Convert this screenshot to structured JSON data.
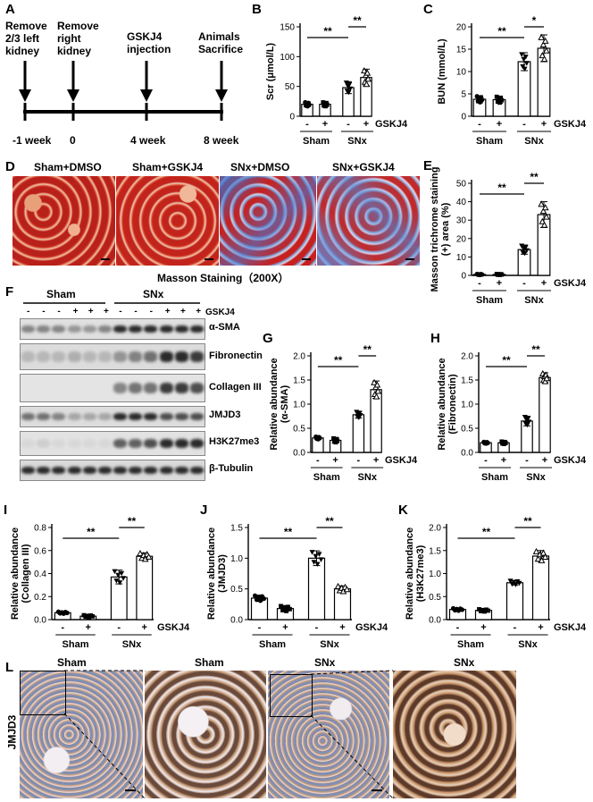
{
  "panels": {
    "A": {
      "label": "A",
      "events": [
        {
          "text": [
            "Remove",
            "2/3 left",
            "kidney"
          ],
          "time": "-1 week"
        },
        {
          "text": [
            "Remove",
            "right",
            "kidney"
          ],
          "time": "0"
        },
        {
          "text": [
            "GSKJ4",
            "injection"
          ],
          "time": "4 week"
        },
        {
          "text": [
            "Animals",
            "Sacrifice"
          ],
          "time": "8 week"
        }
      ]
    },
    "D": {
      "label": "D",
      "titles": [
        "Sham+DMSO",
        "Sham+GSKJ4",
        "SNx+DMSO",
        "SNx+GSKJ4"
      ],
      "caption": "Masson Staining（200X）"
    },
    "F": {
      "label": "F",
      "groups": [
        "Sham",
        "SNx"
      ],
      "lane_signs": [
        "-",
        "-",
        "-",
        "+",
        "+",
        "+",
        "-",
        "-",
        "-",
        "+",
        "+",
        "+"
      ],
      "treatment": "GSKJ4",
      "proteins": [
        "α-SMA",
        "Fibronectin",
        "Collagen III",
        "JMJD3",
        "H3K27me3",
        "β-Tubulin"
      ]
    },
    "L": {
      "label": "L",
      "row_label": "JMJD3",
      "titles": [
        "Sham",
        "Sham",
        "SNx",
        "SNx"
      ]
    }
  },
  "common": {
    "treatment": "GSKJ4",
    "groups": [
      "Sham",
      "SNx"
    ],
    "signs": [
      "-",
      "+",
      "-",
      "+"
    ],
    "sig": "**",
    "sig_single": "*"
  },
  "chart_data": [
    {
      "id": "B",
      "type": "bar",
      "label": "B",
      "ylabel": "Scr (μmol/L)",
      "ylim": [
        0,
        150
      ],
      "yticks": [
        0,
        50,
        100,
        150
      ],
      "categories": [
        "Sham -",
        "Sham +",
        "SNx -",
        "SNx +"
      ],
      "values": [
        20,
        20,
        48,
        65
      ],
      "errors": [
        4,
        4,
        10,
        14
      ],
      "sig": [
        {
          "from": 0,
          "to": 2,
          "text": "**"
        },
        {
          "from": 2,
          "to": 3,
          "text": "**"
        }
      ]
    },
    {
      "id": "C",
      "type": "bar",
      "label": "C",
      "ylabel": "BUN (mmol/L)",
      "ylim": [
        0,
        20
      ],
      "yticks": [
        0,
        5,
        10,
        15,
        20
      ],
      "categories": [
        "Sham -",
        "Sham +",
        "SNx -",
        "SNx +"
      ],
      "values": [
        3.8,
        3.7,
        12.2,
        15.2
      ],
      "errors": [
        0.8,
        0.8,
        2.0,
        3.0
      ],
      "sig": [
        {
          "from": 0,
          "to": 2,
          "text": "**"
        },
        {
          "from": 2,
          "to": 3,
          "text": "*"
        }
      ]
    },
    {
      "id": "E",
      "type": "bar",
      "label": "E",
      "ylabel": "Masson trichrome staining (+) area (%)",
      "ylim": [
        0,
        50
      ],
      "yticks": [
        0,
        10,
        20,
        30,
        40,
        50
      ],
      "categories": [
        "Sham -",
        "Sham +",
        "SNx -",
        "SNx +"
      ],
      "values": [
        0.5,
        0.5,
        14,
        33
      ],
      "errors": [
        0.3,
        0.3,
        2.5,
        7
      ],
      "sig": [
        {
          "from": 0,
          "to": 2,
          "text": "**"
        },
        {
          "from": 2,
          "to": 3,
          "text": "**"
        }
      ]
    },
    {
      "id": "G",
      "type": "bar",
      "label": "G",
      "ylabel": "Relative abundance (α-SMA)",
      "ylim": [
        0,
        2.0
      ],
      "yticks": [
        0.0,
        0.5,
        1.0,
        1.5,
        2.0
      ],
      "categories": [
        "Sham -",
        "Sham +",
        "SNx -",
        "SNx +"
      ],
      "values": [
        0.3,
        0.25,
        0.78,
        1.3
      ],
      "errors": [
        0.03,
        0.05,
        0.07,
        0.18
      ],
      "sig": [
        {
          "from": 0,
          "to": 2,
          "text": "**"
        },
        {
          "from": 2,
          "to": 3,
          "text": "**"
        }
      ]
    },
    {
      "id": "H",
      "type": "bar",
      "label": "H",
      "ylabel": "Relative abundance (Fibronectin)",
      "ylim": [
        0,
        2.0
      ],
      "yticks": [
        0.0,
        0.5,
        1.0,
        1.5,
        2.0
      ],
      "categories": [
        "Sham -",
        "Sham +",
        "SNx -",
        "SNx +"
      ],
      "values": [
        0.2,
        0.2,
        0.65,
        1.55
      ],
      "errors": [
        0.02,
        0.03,
        0.1,
        0.1
      ],
      "sig": [
        {
          "from": 0,
          "to": 2,
          "text": "**"
        },
        {
          "from": 2,
          "to": 3,
          "text": "**"
        }
      ]
    },
    {
      "id": "I",
      "type": "bar",
      "label": "I",
      "ylabel": "Relative abundance (Collagen III)",
      "ylim": [
        0,
        0.8
      ],
      "yticks": [
        0.0,
        0.2,
        0.4,
        0.6,
        0.8
      ],
      "categories": [
        "Sham -",
        "Sham +",
        "SNx -",
        "SNx +"
      ],
      "values": [
        0.06,
        0.03,
        0.37,
        0.55
      ],
      "errors": [
        0.01,
        0.01,
        0.06,
        0.03
      ],
      "sig": [
        {
          "from": 0,
          "to": 2,
          "text": "**"
        },
        {
          "from": 2,
          "to": 3,
          "text": "**"
        }
      ]
    },
    {
      "id": "J",
      "type": "bar",
      "label": "J",
      "ylabel": "Relative abundance (JMJD3)",
      "ylim": [
        0,
        1.5
      ],
      "yticks": [
        0.0,
        0.5,
        1.0,
        1.5
      ],
      "categories": [
        "Sham -",
        "Sham +",
        "SNx -",
        "SNx +"
      ],
      "values": [
        0.35,
        0.18,
        1.0,
        0.5
      ],
      "errors": [
        0.05,
        0.05,
        0.12,
        0.05
      ],
      "sig": [
        {
          "from": 0,
          "to": 2,
          "text": "**"
        },
        {
          "from": 2,
          "to": 3,
          "text": "**"
        }
      ]
    },
    {
      "id": "K",
      "type": "bar",
      "label": "K",
      "ylabel": "Relative abundance (H3K27me3)",
      "ylim": [
        0,
        2.0
      ],
      "yticks": [
        0.0,
        0.5,
        1.0,
        1.5,
        2.0
      ],
      "categories": [
        "Sham -",
        "Sham +",
        "SNx -",
        "SNx +"
      ],
      "values": [
        0.22,
        0.2,
        0.8,
        1.38
      ],
      "errors": [
        0.03,
        0.03,
        0.05,
        0.12
      ],
      "sig": [
        {
          "from": 0,
          "to": 2,
          "text": "**"
        },
        {
          "from": 2,
          "to": 3,
          "text": "**"
        }
      ]
    }
  ]
}
